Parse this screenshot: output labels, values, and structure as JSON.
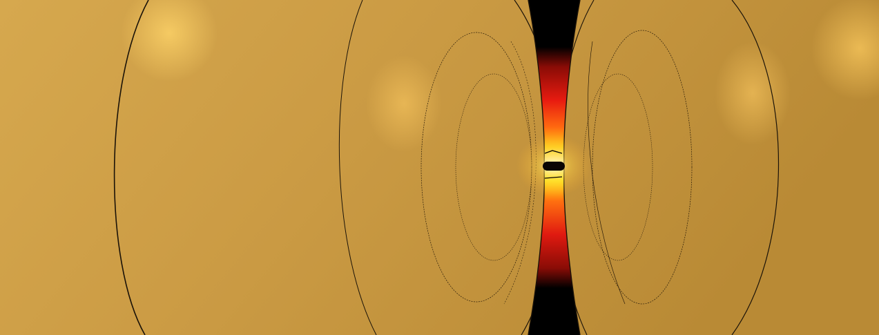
{
  "scene": {
    "colors": {
      "gold_left": "#d6a84e",
      "gold_mid": "#c99a43",
      "gold_right": "#b98a35",
      "highlight": "#f3c45e",
      "gap": "#000000",
      "field_red": "#e01a10",
      "field_orange": "#ff6a10",
      "field_yellow": "#ffe81a",
      "field_white": "#ffffe0",
      "outline": "#1a1208"
    },
    "objects": [
      {
        "name": "left-particle",
        "shape": "ellipsoid"
      },
      {
        "name": "right-particle",
        "shape": "ellipsoid"
      },
      {
        "name": "nanogap",
        "shape": "gap"
      },
      {
        "name": "hotspot",
        "shape": "field-enhancement"
      }
    ]
  }
}
